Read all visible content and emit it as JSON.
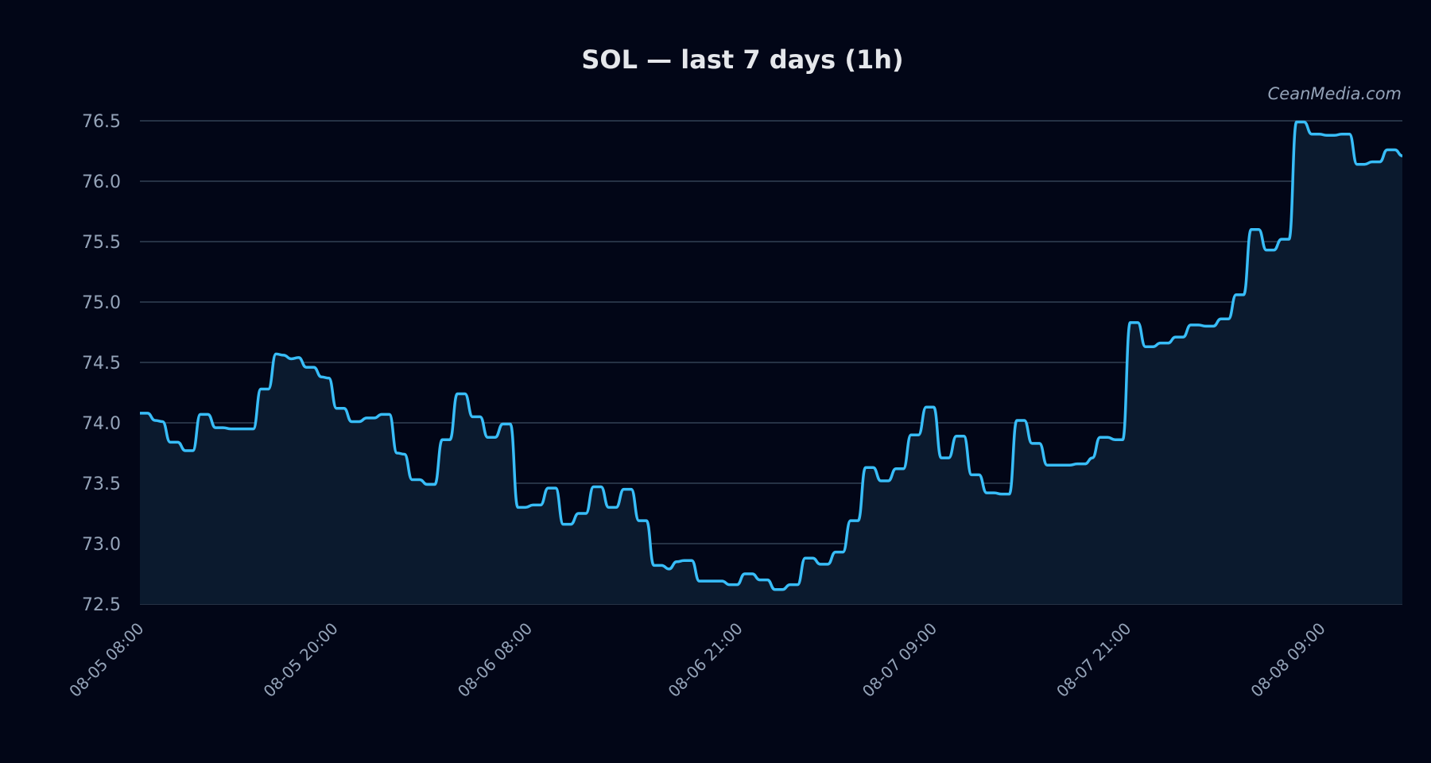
{
  "watermark": "CeanMedia.com",
  "colors": {
    "background": "#020617",
    "line": "#38bdf8",
    "area": "#0b1a2e",
    "grid": "#334155",
    "text": "#94a3b8",
    "title": "#e5e7eb"
  },
  "chart_data": {
    "type": "line",
    "title": "SOL — last 7 days (1h)",
    "xlabel": "",
    "ylabel": "",
    "ylim": [
      72.5,
      76.5
    ],
    "y_ticks": [
      "72.5",
      "73.0",
      "73.5",
      "74.0",
      "74.5",
      "75.0",
      "75.5",
      "76.0",
      "76.5"
    ],
    "x_ticks": [
      "08-05 08:00",
      "08-05 20:00",
      "08-06 08:00",
      "08-06 21:00",
      "08-07 09:00",
      "08-07 21:00",
      "08-08 09:00"
    ],
    "x_start": "08-05 08:00",
    "x_end": "08-08 14:00",
    "grid": true,
    "area_fill": true,
    "series": [
      {
        "values": [
          74.08,
          74.08,
          74.02,
          74.01,
          73.84,
          73.84,
          73.77,
          73.77,
          74.07,
          74.07,
          73.96,
          73.96,
          73.95,
          73.95,
          73.95,
          73.95,
          74.28,
          74.28,
          74.57,
          74.56,
          74.53,
          74.54,
          74.46,
          74.46,
          74.38,
          74.37,
          74.12,
          74.12,
          74.01,
          74.01,
          74.04,
          74.04,
          74.07,
          74.07,
          73.75,
          73.74,
          73.53,
          73.53,
          73.49,
          73.49,
          73.86,
          73.86,
          74.24,
          74.24,
          74.05,
          74.05,
          73.88,
          73.88,
          73.99,
          73.99,
          73.3,
          73.3,
          73.32,
          73.32,
          73.46,
          73.46,
          73.16,
          73.16,
          73.25,
          73.25,
          73.47,
          73.47,
          73.3,
          73.3,
          73.45,
          73.45,
          73.19,
          73.19,
          72.82,
          72.82,
          72.79,
          72.85,
          72.86,
          72.86,
          72.69,
          72.69,
          72.69,
          72.69,
          72.66,
          72.66,
          72.75,
          72.75,
          72.7,
          72.7,
          72.62,
          72.62,
          72.66,
          72.66,
          72.88,
          72.88,
          72.83,
          72.83,
          72.93,
          72.93,
          73.19,
          73.19,
          73.63,
          73.63,
          73.52,
          73.52,
          73.62,
          73.62,
          73.9,
          73.9,
          74.13,
          74.13,
          73.71,
          73.71,
          73.89,
          73.89,
          73.57,
          73.57,
          73.42,
          73.42,
          73.41,
          73.41,
          74.02,
          74.02,
          73.83,
          73.83,
          73.65,
          73.65,
          73.65,
          73.65,
          73.66,
          73.66,
          73.71,
          73.88,
          73.88,
          73.86,
          73.86,
          74.83,
          74.83,
          74.63,
          74.63,
          74.66,
          74.66,
          74.71,
          74.71,
          74.81,
          74.81,
          74.8,
          74.8,
          74.86,
          74.86,
          75.06,
          75.06,
          75.6,
          75.6,
          75.43,
          75.43,
          75.52,
          75.52,
          76.49,
          76.49,
          76.39,
          76.39,
          76.38,
          76.38,
          76.39,
          76.39,
          76.14,
          76.14,
          76.16,
          76.16,
          76.26,
          76.26,
          76.21
        ]
      }
    ]
  }
}
